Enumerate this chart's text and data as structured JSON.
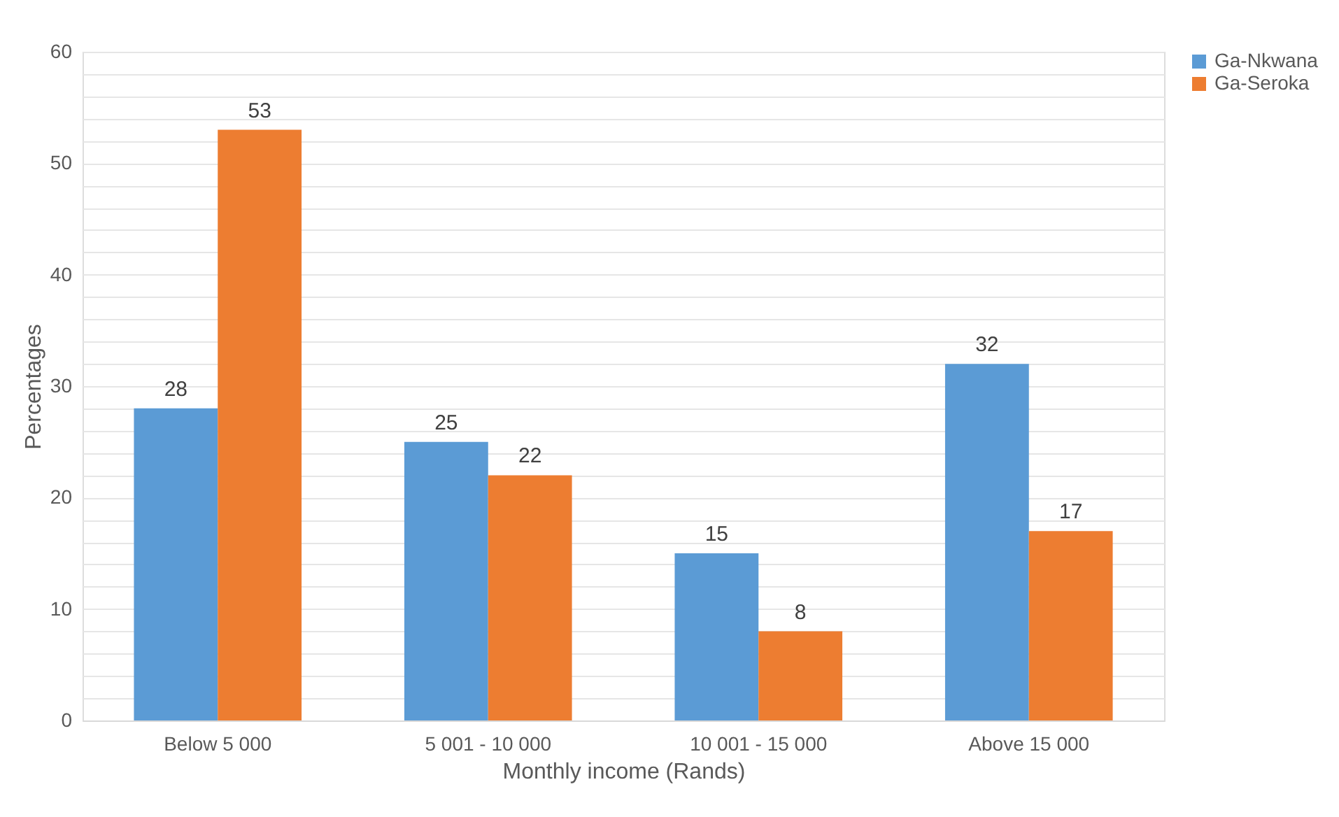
{
  "chart_data": {
    "type": "bar",
    "xlabel": "Monthly income (Rands)",
    "ylabel": "Percentages",
    "categories": [
      "Below 5 000",
      "5 001 - 10 000",
      "10 001 - 15 000",
      "Above 15 000"
    ],
    "series": [
      {
        "name": "Ga-Nkwana",
        "color": "#5b9bd5",
        "values": [
          28,
          25,
          15,
          32
        ]
      },
      {
        "name": "Ga-Seroka",
        "color": "#ed7d31",
        "values": [
          53,
          22,
          8,
          17
        ]
      }
    ],
    "ylim": [
      0,
      60
    ],
    "yticks": [
      0,
      {
        "value": 2,
        "label": null
      },
      {
        "value": 4,
        "label": null
      },
      {
        "value": 6,
        "label": null
      },
      {
        "value": 8,
        "label": null
      },
      10,
      {
        "value": 12,
        "label": null
      },
      {
        "value": 14,
        "label": null
      },
      {
        "value": 16,
        "label": null
      },
      {
        "value": 18,
        "label": null
      },
      20,
      {
        "value": 22,
        "label": null
      },
      {
        "value": 24,
        "label": null
      },
      {
        "value": 26,
        "label": null
      },
      {
        "value": 28,
        "label": null
      },
      30,
      {
        "value": 32,
        "label": null
      },
      {
        "value": 34,
        "label": null
      },
      {
        "value": 36,
        "label": null
      },
      {
        "value": 38,
        "label": null
      },
      40,
      {
        "value": 42,
        "label": null
      },
      {
        "value": 44,
        "label": null
      },
      {
        "value": 46,
        "label": null
      },
      {
        "value": 48,
        "label": null
      },
      50,
      {
        "value": 52,
        "label": null
      },
      {
        "value": 54,
        "label": null
      },
      {
        "value": 56,
        "label": null
      },
      {
        "value": 58,
        "label": null
      },
      60
    ],
    "grid": "y",
    "legend": "right",
    "data_labels": true
  }
}
